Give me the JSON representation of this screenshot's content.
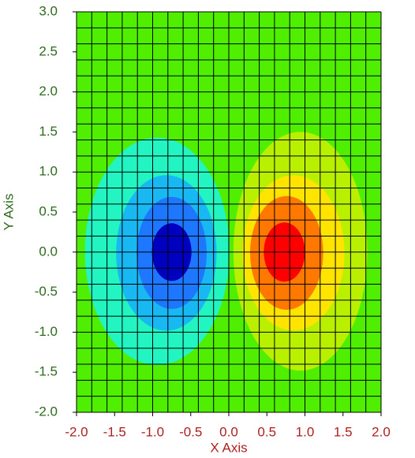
{
  "chart_data": {
    "type": "contour",
    "x_label": "X Axis",
    "y_label": "Y Axis",
    "xlim": [
      -2,
      2
    ],
    "ylim": [
      -2,
      3
    ],
    "xticks": [
      {
        "value": -2,
        "label": "-2.0"
      },
      {
        "value": -1.5,
        "label": "-1.5"
      },
      {
        "value": -1,
        "label": "-1.0"
      },
      {
        "value": -0.5,
        "label": "-0.5"
      },
      {
        "value": 0,
        "label": "0.0"
      },
      {
        "value": 0.5,
        "label": "0.5"
      },
      {
        "value": 1,
        "label": "1.0"
      },
      {
        "value": 1.5,
        "label": "1.5"
      },
      {
        "value": 2,
        "label": "2.0"
      }
    ],
    "yticks": [
      {
        "value": 3,
        "label": "3.0"
      },
      {
        "value": 2.5,
        "label": "2.5"
      },
      {
        "value": 2,
        "label": "2.0"
      },
      {
        "value": 1.5,
        "label": "1.5"
      },
      {
        "value": 1,
        "label": "1.0"
      },
      {
        "value": 0.5,
        "label": "0.5"
      },
      {
        "value": 0,
        "label": "0.0"
      },
      {
        "value": -0.5,
        "label": "-0.5"
      },
      {
        "value": -1,
        "label": "-1.0"
      },
      {
        "value": -1.5,
        "label": "-1.5"
      },
      {
        "value": -2,
        "label": "-2.0"
      }
    ],
    "background_color": "#50ee00",
    "mesh_step": 0.2,
    "regions": [
      {
        "color": "#22f5c2",
        "cx": -0.94,
        "cy": 0.01,
        "rx": 0.95,
        "ry": 1.42
      },
      {
        "color": "#18b8f2",
        "cx": -0.82,
        "cy": -0.01,
        "rx": 0.66,
        "ry": 0.97
      },
      {
        "color": "#1e78ff",
        "cx": -0.75,
        "cy": -0.01,
        "rx": 0.46,
        "ry": 0.7
      },
      {
        "color": "#0000c0",
        "cx": -0.75,
        "cy": 0,
        "rx": 0.26,
        "ry": 0.36
      },
      {
        "color": "#b8f000",
        "cx": 0.94,
        "cy": 0.01,
        "rx": 0.88,
        "ry": 1.49
      },
      {
        "color": "#ffe400",
        "cx": 0.85,
        "cy": -0.01,
        "rx": 0.67,
        "ry": 0.97
      },
      {
        "color": "#ff7800",
        "cx": 0.76,
        "cy": -0.01,
        "rx": 0.48,
        "ry": 0.71
      },
      {
        "color": "#ff0000",
        "cx": 0.73,
        "cy": 0,
        "rx": 0.27,
        "ry": 0.37
      }
    ]
  }
}
